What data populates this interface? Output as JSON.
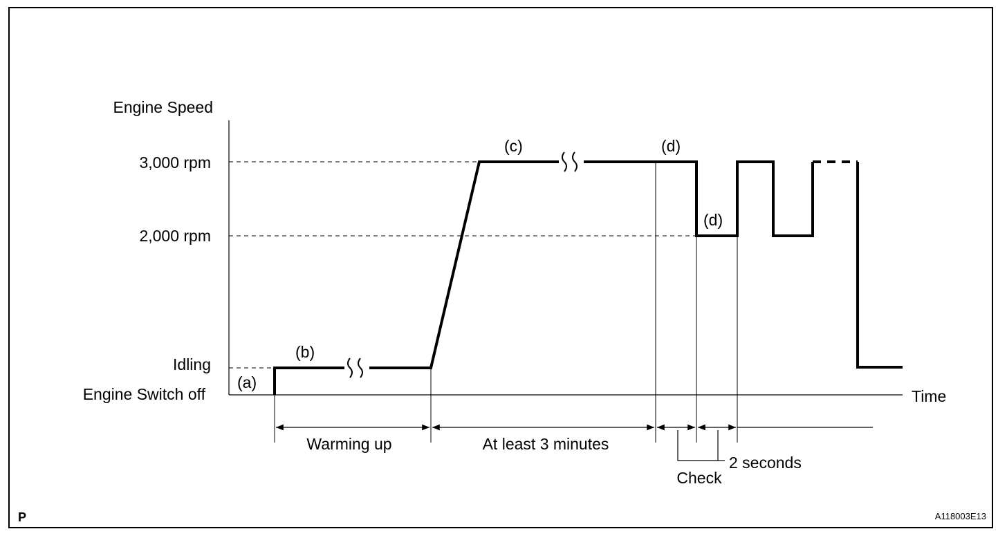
{
  "figure": {
    "corner_mark": "P",
    "figure_code": "A118003E13"
  },
  "axes": {
    "y_title": "Engine Speed",
    "x_title": "Time",
    "y_levels": {
      "rpm_3000": "3,000 rpm",
      "rpm_2000": "2,000 rpm",
      "idling": "Idling",
      "switch_off": "Engine Switch off"
    }
  },
  "steps": {
    "a": "(a)",
    "b": "(b)",
    "c": "(c)",
    "d_top": "(d)",
    "d_low": "(d)"
  },
  "intervals": {
    "warming_up": "Warming up",
    "at_least": "At least 3 minutes",
    "check": "Check",
    "two_seconds": "2 seconds"
  },
  "colors": {
    "line": "#000000",
    "background": "#ffffff"
  }
}
